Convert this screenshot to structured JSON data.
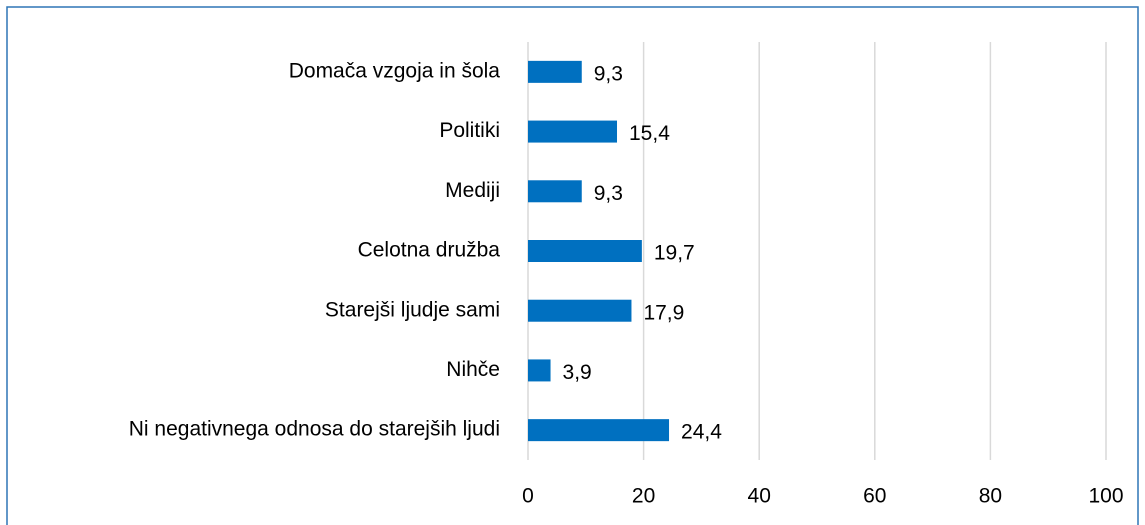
{
  "chart_data": {
    "type": "bar",
    "orientation": "horizontal",
    "categories": [
      "Domača vzgoja in šola",
      "Politiki",
      "Mediji",
      "Celotna družba",
      "Starejši ljudje sami",
      "Nihče",
      "Ni negativnega odnosa do starejših ljudi"
    ],
    "values": [
      9.3,
      15.4,
      9.3,
      19.7,
      17.9,
      3.9,
      24.4
    ],
    "value_labels": [
      "9,3",
      "15,4",
      "9,3",
      "19,7",
      "17,9",
      "3,9",
      "24,4"
    ],
    "color": "#0070c0",
    "xlim": [
      0,
      100
    ],
    "xticks": [
      0,
      20,
      40,
      60,
      80,
      100
    ],
    "grid": true
  }
}
